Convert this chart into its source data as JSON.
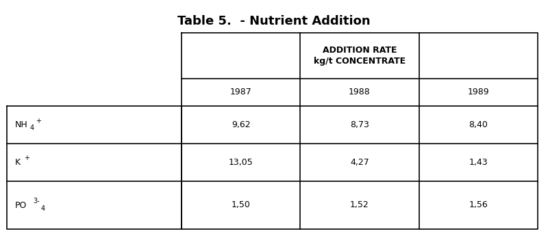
{
  "title": "Table 5.  - Nutrient Addition",
  "header_main_line1": "ADDITION RATE",
  "header_main_line2": "kg/t CONCENTRATE",
  "col_years": [
    "1987",
    "1988",
    "1989"
  ],
  "values": [
    [
      "9,62",
      "8,73",
      "8,40"
    ],
    [
      "13,05",
      "4,27",
      "1,43"
    ],
    [
      "1,50",
      "1,52",
      "1,56"
    ]
  ],
  "bg_color": "#ffffff",
  "text_color": "#000000",
  "line_color": "#000000",
  "title_fontsize": 13,
  "header_fontsize": 9,
  "cell_fontsize": 9,
  "label_fontsize": 9
}
